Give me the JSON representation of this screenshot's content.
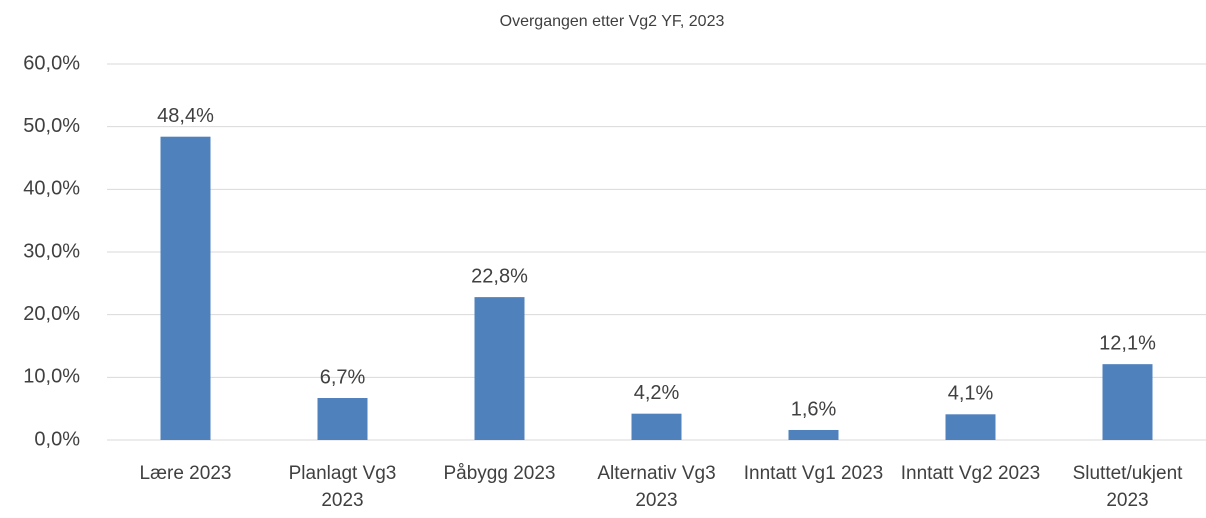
{
  "chart_data": {
    "type": "bar",
    "title": "Overgangen etter Vg2 YF, 2023",
    "categories": [
      "Lære 2023",
      "Planlagt Vg3 2023",
      "Påbygg 2023",
      "Alternativ Vg3 2023",
      "Inntatt Vg1 2023",
      "Inntatt Vg2 2023",
      "Sluttet/ukjent 2023"
    ],
    "values": [
      48.4,
      6.7,
      22.8,
      4.2,
      1.6,
      4.1,
      12.1
    ],
    "value_labels": [
      "48,4%",
      "6,7%",
      "22,8%",
      "4,2%",
      "1,6%",
      "4,1%",
      "12,1%"
    ],
    "color": "#4f81bd",
    "ylim": [
      0,
      60
    ],
    "yticks": [
      {
        "value": 0,
        "label": "0,0%"
      },
      {
        "value": 10,
        "label": "10,0%"
      },
      {
        "value": 20,
        "label": "20,0%"
      },
      {
        "value": 30,
        "label": "30,0%"
      },
      {
        "value": 40,
        "label": "40,0%"
      },
      {
        "value": 50,
        "label": "50,0%"
      },
      {
        "value": 60,
        "label": "60,0%"
      }
    ],
    "grid": true
  }
}
